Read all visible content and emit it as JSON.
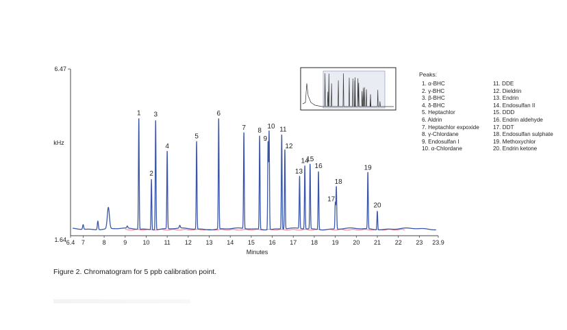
{
  "chart_data": {
    "type": "line",
    "title": "",
    "xlabel": "Minutes",
    "ylabel": "kHz",
    "xlim": [
      6.4,
      23.9
    ],
    "ylim": [
      1.64,
      6.47
    ],
    "xticks": [
      "6.4",
      "7",
      "8",
      "9",
      "10",
      "11",
      "12",
      "13",
      "14",
      "15",
      "16",
      "17",
      "18",
      "19",
      "20",
      "21",
      "22",
      "23",
      "23.9"
    ],
    "yticks": [
      "1.64",
      "6.47"
    ],
    "series_color": "#3a56a8",
    "baseline_color": "#e0304a",
    "peaks": [
      {
        "label": "1",
        "x": 9.65,
        "y": 5.02
      },
      {
        "label": "2",
        "x": 10.25,
        "y": 3.22
      },
      {
        "label": "3",
        "x": 10.45,
        "y": 4.98
      },
      {
        "label": "4",
        "x": 11.0,
        "y": 4.03
      },
      {
        "label": "5",
        "x": 12.4,
        "y": 4.33
      },
      {
        "label": "6",
        "x": 13.45,
        "y": 5.01
      },
      {
        "label": "7",
        "x": 14.65,
        "y": 4.58
      },
      {
        "label": "8",
        "x": 15.4,
        "y": 4.5
      },
      {
        "label": "9",
        "x": 15.8,
        "y": 4.3
      },
      {
        "label": "10",
        "x": 15.85,
        "y": 4.62
      },
      {
        "label": "11",
        "x": 16.45,
        "y": 4.53
      },
      {
        "label": "12",
        "x": 16.6,
        "y": 4.08
      },
      {
        "label": "13",
        "x": 17.3,
        "y": 3.28
      },
      {
        "label": "14",
        "x": 17.55,
        "y": 3.6
      },
      {
        "label": "15",
        "x": 17.8,
        "y": 3.65
      },
      {
        "label": "16",
        "x": 18.2,
        "y": 3.45
      },
      {
        "label": "17",
        "x": 19.0,
        "y": 2.5
      },
      {
        "label": "18",
        "x": 19.05,
        "y": 2.98
      },
      {
        "label": "19",
        "x": 20.55,
        "y": 3.4
      },
      {
        "label": "20",
        "x": 21.0,
        "y": 2.28
      }
    ],
    "minor_peaks": [
      {
        "x": 7.0,
        "y": 1.86
      },
      {
        "x": 7.7,
        "y": 1.98
      },
      {
        "x": 8.2,
        "y": 2.35
      },
      {
        "x": 9.1,
        "y": 1.78
      },
      {
        "x": 11.6,
        "y": 1.8
      }
    ],
    "inset": {
      "description_shown": false
    }
  },
  "legend": {
    "title": "Peaks:",
    "col1": [
      "1. α-BHC",
      "2. γ-BHC",
      "3. β-BHC",
      "4. δ-BHC",
      "5. Heptachlor",
      "6. Aldrin",
      "7. Heptachlor expoxide",
      "8. γ-Chlordane",
      "9. Endosulfan I",
      "10. α-Chlordane"
    ],
    "col2": [
      "11. DDE",
      "12. Dieldrin",
      "13. Endrin",
      "14. Endosulfan II",
      "15. DDD",
      "16. Endrin aldehyde",
      "17. DDT",
      "18. Endosulfan sulphate",
      "19. Methoxychlor",
      "20. Endrin ketone"
    ]
  },
  "caption": "Figure 2. Chromatogram for 5 ppb calibration point."
}
